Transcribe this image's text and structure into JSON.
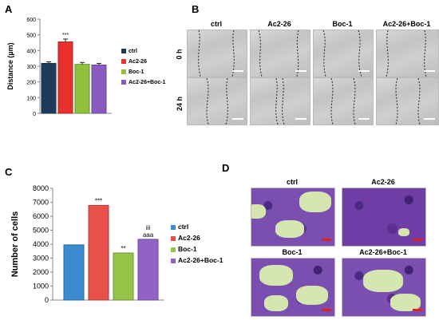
{
  "panels": {
    "a": {
      "letter": "A"
    },
    "b": {
      "letter": "B",
      "columns": [
        "ctrl",
        "Ac2-26",
        "Boc-1",
        "Ac2-26+Boc-1"
      ],
      "rows": [
        "0 h",
        "24 h"
      ]
    },
    "c": {
      "letter": "C"
    },
    "d": {
      "letter": "D",
      "labels": [
        "ctrl",
        "Ac2-26",
        "Boc-1",
        "Ac2-26+Boc-1"
      ]
    }
  },
  "chart_data": [
    {
      "type": "bar",
      "panel": "A",
      "categories": [
        "ctrl",
        "Ac2-26",
        "Boc-1",
        "Ac2-26+Boc-1"
      ],
      "values": [
        318,
        455,
        312,
        308
      ],
      "errors": [
        10,
        18,
        12,
        10
      ],
      "colors": [
        "#1f3b5c",
        "#e8312c",
        "#8fc13a",
        "#8a5bbf"
      ],
      "ylabel": "Distance (µm)",
      "ylim": [
        0,
        600
      ],
      "yticks": [
        0,
        100,
        200,
        300,
        400,
        500,
        600
      ],
      "annotations": [
        {
          "category": "Ac2-26",
          "text": "***"
        }
      ],
      "legend": [
        "ctrl",
        "Ac2-26",
        "Boc-1",
        "Ac2-26+Boc-1"
      ]
    },
    {
      "type": "bar",
      "panel": "C",
      "categories": [
        "ctrl",
        "Ac2-26",
        "Boc-1",
        "Ac2-26+Boc-1"
      ],
      "values": [
        3950,
        6780,
        3370,
        4350
      ],
      "colors": [
        "#3b8bd0",
        "#e8504a",
        "#95c548",
        "#9262c6"
      ],
      "ylabel": "Number of cells",
      "ylim": [
        0,
        8000
      ],
      "yticks": [
        0,
        1000,
        2000,
        3000,
        4000,
        5000,
        6000,
        7000,
        8000
      ],
      "annotations": [
        {
          "category": "Ac2-26",
          "text": "***"
        },
        {
          "category": "Boc-1",
          "text": "**"
        },
        {
          "category": "Ac2-26+Boc-1",
          "text": "iii"
        },
        {
          "category": "Ac2-26+Boc-1",
          "text": "aaa"
        }
      ],
      "legend": [
        "ctrl",
        "Ac2-26",
        "Boc-1",
        "Ac2-26+Boc-1"
      ]
    }
  ]
}
